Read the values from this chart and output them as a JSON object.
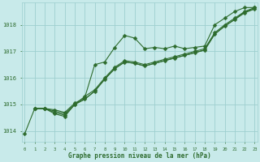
{
  "bg_color": "#c8eaea",
  "grid_color": "#9ecfcf",
  "line_color": "#2d6b2d",
  "marker_color": "#2d6b2d",
  "xlabel": "Graphe pression niveau de la mer (hPa)",
  "xlabel_color": "#2d6b2d",
  "ylim": [
    1013.6,
    1018.85
  ],
  "xlim": [
    -0.3,
    23.3
  ],
  "yticks": [
    1014,
    1015,
    1016,
    1017,
    1018
  ],
  "xticks": [
    0,
    1,
    2,
    3,
    4,
    5,
    6,
    7,
    8,
    9,
    10,
    11,
    12,
    13,
    14,
    15,
    16,
    17,
    18,
    19,
    20,
    21,
    22,
    23
  ],
  "lines": [
    {
      "x": [
        0,
        1,
        2,
        3,
        4,
        5,
        6,
        7,
        8,
        9,
        10,
        11,
        12,
        13,
        14,
        15,
        16,
        17,
        18,
        19,
        20,
        21,
        22,
        23
      ],
      "y": [
        1013.9,
        1014.85,
        1014.85,
        1014.8,
        1014.7,
        1015.05,
        1015.25,
        1016.5,
        1016.6,
        1017.15,
        1017.6,
        1017.5,
        1017.1,
        1017.15,
        1017.1,
        1017.2,
        1017.1,
        1017.15,
        1017.2,
        1018.0,
        1018.25,
        1018.5,
        1018.65,
        1018.65
      ],
      "marker": true
    },
    {
      "x": [
        1,
        2,
        3,
        4,
        5,
        6,
        7,
        8,
        9,
        10,
        11,
        12,
        13,
        14,
        15,
        16,
        17,
        18,
        19,
        20,
        21,
        22,
        23
      ],
      "y": [
        1014.85,
        1014.85,
        1014.65,
        1014.55,
        1015.0,
        1015.3,
        1015.55,
        1016.0,
        1016.4,
        1016.65,
        1016.6,
        1016.5,
        1016.6,
        1016.7,
        1016.8,
        1016.9,
        1017.0,
        1017.1,
        1017.7,
        1018.0,
        1018.25,
        1018.5,
        1018.65
      ],
      "marker": true
    },
    {
      "x": [
        1,
        2,
        3,
        4,
        5,
        6,
        7,
        8,
        9,
        10,
        11,
        12,
        13,
        14,
        15,
        16,
        17,
        18,
        19,
        20,
        21,
        22,
        23
      ],
      "y": [
        1014.85,
        1014.85,
        1014.7,
        1014.6,
        1015.0,
        1015.2,
        1015.5,
        1015.95,
        1016.35,
        1016.6,
        1016.55,
        1016.45,
        1016.55,
        1016.65,
        1016.75,
        1016.85,
        1016.95,
        1017.05,
        1017.65,
        1017.95,
        1018.2,
        1018.45,
        1018.6
      ],
      "marker": true
    },
    {
      "x": [
        1,
        2,
        3,
        4,
        5,
        6,
        7,
        8,
        9,
        10,
        11,
        12,
        13,
        14,
        15,
        16,
        17,
        18,
        19,
        20,
        21,
        22,
        23
      ],
      "y": [
        1014.85,
        1014.85,
        1014.75,
        1014.65,
        1015.0,
        1015.2,
        1015.5,
        1015.95,
        1016.35,
        1016.6,
        1016.55,
        1016.45,
        1016.55,
        1016.65,
        1016.75,
        1016.85,
        1016.95,
        1017.05,
        1017.65,
        1017.95,
        1018.2,
        1018.5,
        1018.6
      ],
      "marker": false
    }
  ],
  "marker_size": 2.5,
  "linewidth": 0.8,
  "figsize": [
    3.2,
    2.0
  ],
  "dpi": 100
}
